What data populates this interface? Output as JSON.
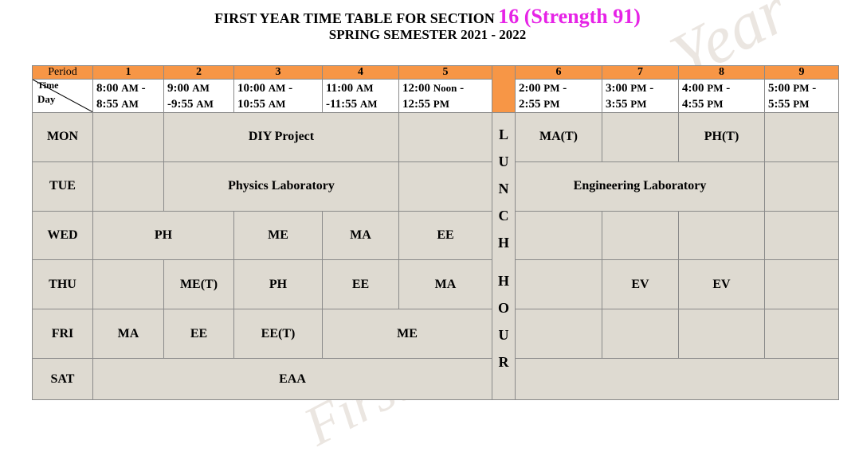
{
  "title": {
    "line1_text": "FIRST YEAR TIME TABLE FOR SECTION",
    "line1_section": "16 (Strength 91)",
    "line2": "SPRING SEMESTER 2021 - 2022"
  },
  "watermark": {
    "text1": "Year",
    "text2": "First"
  },
  "header": {
    "period_label": "Period",
    "corner_time": "Time",
    "corner_day": "Day",
    "periods": [
      "1",
      "2",
      "3",
      "4",
      "5",
      "6",
      "7",
      "8",
      "9"
    ],
    "times": [
      {
        "l1": "8:00",
        "l1s": "AM",
        "l1e": " -",
        "l2": "8:55",
        "l2s": "AM"
      },
      {
        "l1": "9:00",
        "l1s": "AM",
        "l1e": "",
        "l2": "-9:55",
        "l2s": "AM"
      },
      {
        "l1": "10:00",
        "l1s": "AM",
        "l1e": " -",
        "l2": "10:55",
        "l2s": "AM"
      },
      {
        "l1": "11:00",
        "l1s": "AM",
        "l1e": "",
        "l2": "-11:55",
        "l2s": "AM"
      },
      {
        "l1": "12:00",
        "l1s": "Noon",
        "l1e": " -",
        "l2": "12:55",
        "l2s": "PM"
      },
      {
        "l1": "2:00",
        "l1s": "PM",
        "l1e": " -",
        "l2": "2:55",
        "l2s": "PM"
      },
      {
        "l1": "3:00",
        "l1s": "PM",
        "l1e": " -",
        "l2": "3:55",
        "l2s": "PM"
      },
      {
        "l1": "4:00",
        "l1s": "PM",
        "l1e": " -",
        "l2": "4:55",
        "l2s": "PM"
      },
      {
        "l1": "5:00",
        "l1s": "PM",
        "l1e": " -",
        "l2": "5:55",
        "l2s": "PM"
      }
    ]
  },
  "lunch_letters": [
    "L",
    "U",
    "N",
    "C",
    "H",
    "H",
    "O",
    "U",
    "R"
  ],
  "days": {
    "mon": {
      "name": "MON",
      "diy": "DIY Project",
      "p6": "MA(T)",
      "p8": "PH(T)"
    },
    "tue": {
      "name": "TUE",
      "phy_lab": "Physics  Laboratory",
      "eng_lab": "Engineering Laboratory"
    },
    "wed": {
      "name": "WED",
      "p12": "PH",
      "p3": "ME",
      "p4": "MA",
      "p5": "EE"
    },
    "thu": {
      "name": "THU",
      "p2": "ME(T)",
      "p3": "PH",
      "p4": "EE",
      "p5": "MA",
      "p7": "EV",
      "p8": "EV"
    },
    "fri": {
      "name": "FRI",
      "p1": "MA",
      "p2": "EE",
      "p3": "EE(T)",
      "p45": "ME"
    },
    "sat": {
      "name": "SAT",
      "eaa": "EAA"
    }
  },
  "colors": {
    "header_orange": "#f79646",
    "cell_beige": "#dedad1",
    "lab_pink": "#e6b8b7",
    "tutorial_green": "#92d050",
    "eaa_cyan": "#66ffff",
    "lunch_cyan": "#ccffff",
    "section_magenta": "#e623e6"
  }
}
